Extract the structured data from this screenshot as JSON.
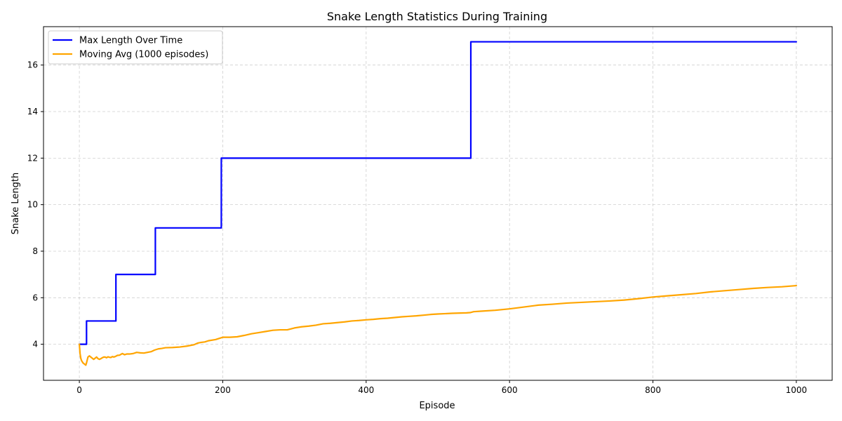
{
  "chart_data": {
    "type": "line",
    "title": "Snake Length Statistics During Training",
    "xlabel": "Episode",
    "ylabel": "Snake Length",
    "xlim": [
      -50,
      1050
    ],
    "ylim": [
      2.45,
      17.65
    ],
    "xticks": [
      0,
      200,
      400,
      600,
      800,
      1000
    ],
    "yticks": [
      4,
      6,
      8,
      10,
      12,
      14,
      16
    ],
    "grid": true,
    "legend_position": "top-left",
    "series": [
      {
        "name": "Max Length Over Time",
        "color": "#0000ff",
        "line_style": "step",
        "x": [
          0,
          10,
          10,
          51,
          51,
          106,
          106,
          198,
          198,
          546,
          546,
          1000
        ],
        "y": [
          4,
          4,
          5,
          5,
          7,
          7,
          9,
          9,
          12,
          12,
          17,
          17
        ]
      },
      {
        "name": "Moving Avg (1000 episodes)",
        "color": "#ffa500",
        "line_style": "line",
        "x": [
          0,
          1,
          2,
          3,
          5,
          7,
          9,
          10,
          12,
          14,
          16,
          18,
          20,
          22,
          24,
          26,
          28,
          30,
          32,
          34,
          36,
          38,
          40,
          42,
          44,
          46,
          48,
          50,
          53,
          56,
          60,
          63,
          66,
          70,
          75,
          80,
          85,
          90,
          95,
          100,
          105,
          110,
          115,
          120,
          130,
          140,
          150,
          155,
          160,
          165,
          170,
          175,
          180,
          190,
          200,
          210,
          220,
          230,
          240,
          250,
          260,
          270,
          280,
          290,
          300,
          310,
          320,
          330,
          340,
          350,
          360,
          370,
          380,
          390,
          400,
          410,
          420,
          430,
          440,
          450,
          460,
          470,
          480,
          490,
          500,
          520,
          540,
          545,
          550,
          560,
          580,
          600,
          620,
          640,
          660,
          680,
          700,
          720,
          740,
          760,
          780,
          800,
          820,
          840,
          860,
          880,
          900,
          920,
          940,
          960,
          980,
          1000
        ],
        "y": [
          4.0,
          3.6,
          3.4,
          3.3,
          3.2,
          3.15,
          3.1,
          3.2,
          3.45,
          3.5,
          3.45,
          3.4,
          3.35,
          3.4,
          3.45,
          3.38,
          3.35,
          3.38,
          3.42,
          3.45,
          3.45,
          3.42,
          3.46,
          3.44,
          3.43,
          3.47,
          3.45,
          3.47,
          3.52,
          3.53,
          3.6,
          3.55,
          3.58,
          3.58,
          3.6,
          3.65,
          3.63,
          3.62,
          3.65,
          3.68,
          3.75,
          3.8,
          3.82,
          3.85,
          3.86,
          3.88,
          3.92,
          3.95,
          3.98,
          4.05,
          4.08,
          4.1,
          4.15,
          4.2,
          4.3,
          4.3,
          4.32,
          4.38,
          4.45,
          4.5,
          4.55,
          4.6,
          4.62,
          4.62,
          4.7,
          4.75,
          4.78,
          4.82,
          4.88,
          4.9,
          4.93,
          4.96,
          5.0,
          5.02,
          5.05,
          5.07,
          5.1,
          5.12,
          5.15,
          5.18,
          5.2,
          5.22,
          5.25,
          5.28,
          5.3,
          5.33,
          5.35,
          5.36,
          5.4,
          5.42,
          5.46,
          5.52,
          5.6,
          5.68,
          5.72,
          5.77,
          5.8,
          5.83,
          5.86,
          5.9,
          5.96,
          6.03,
          6.08,
          6.13,
          6.18,
          6.25,
          6.3,
          6.35,
          6.4,
          6.44,
          6.47,
          6.52
        ]
      }
    ]
  }
}
